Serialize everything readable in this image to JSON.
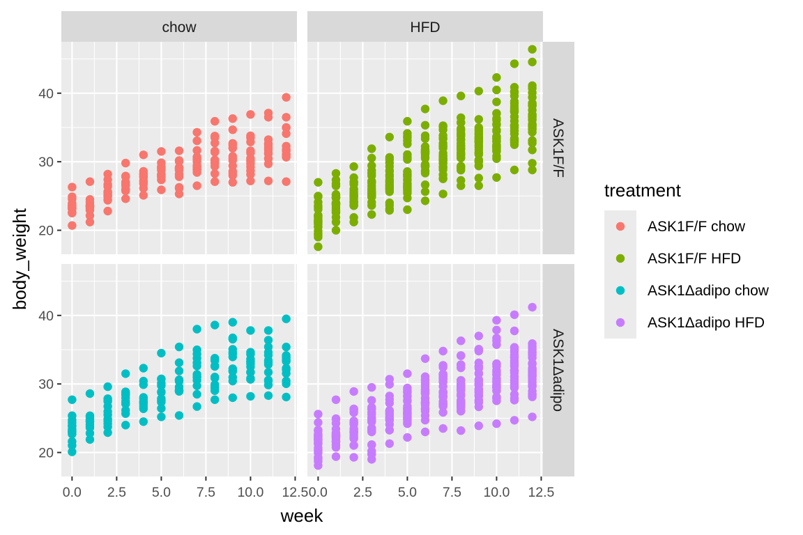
{
  "chart_data": {
    "type": "scatter",
    "xlabel": "week",
    "ylabel": "body_weight",
    "xlim": [
      -0.6,
      12.6
    ],
    "ylim": [
      16.5,
      47.5
    ],
    "x_ticks": [
      "0.0",
      "2.5",
      "5.0",
      "7.5",
      "10.0",
      "12.5"
    ],
    "x_tick_values": [
      0,
      2.5,
      5,
      7.5,
      10,
      12.5
    ],
    "y_ticks": [
      "20",
      "30",
      "40"
    ],
    "y_tick_values": [
      20,
      30,
      40
    ],
    "facet_columns": [
      "chow",
      "HFD"
    ],
    "facet_rows": [
      "ASK1F/F",
      "ASK1Δadipo"
    ],
    "legend": {
      "title": "treatment",
      "position": "right",
      "entries": [
        {
          "label": "ASK1F/F chow",
          "color": "#F8766D"
        },
        {
          "label": "ASK1F/F HFD",
          "color": "#7CAE00"
        },
        {
          "label": "ASK1Δadipo chow",
          "color": "#00BFC4"
        },
        {
          "label": "ASK1Δadipo HFD",
          "color": "#C77CFF"
        }
      ]
    },
    "series": [
      {
        "name": "ASK1F/F chow",
        "row": 0,
        "col": 0,
        "color": "#F8766D",
        "x": [
          0,
          1,
          2,
          3,
          4,
          5,
          6,
          7,
          8,
          9,
          10,
          11,
          12
        ],
        "min": [
          20.7,
          21.2,
          22.8,
          24.6,
          25.1,
          25.9,
          25.3,
          26.5,
          27.1,
          27.0,
          27.2,
          27.2,
          27.1
        ],
        "max": [
          26.3,
          27.1,
          28.2,
          29.8,
          31.0,
          31.5,
          31.6,
          34.3,
          35.9,
          36.3,
          36.9,
          37.1,
          39.4
        ],
        "n": [
          18,
          14,
          15,
          14,
          13,
          14,
          14,
          15,
          15,
          14,
          14,
          14,
          14
        ]
      },
      {
        "name": "ASK1F/F HFD",
        "row": 0,
        "col": 1,
        "color": "#7CAE00",
        "x": [
          0,
          1,
          2,
          3,
          4,
          5,
          6,
          7,
          8,
          9,
          10,
          11,
          12
        ],
        "min": [
          17.6,
          20.0,
          21.2,
          22.3,
          22.9,
          23.0,
          24.3,
          25.3,
          26.5,
          26.5,
          27.7,
          28.8,
          28.8
        ],
        "max": [
          27.0,
          28.3,
          29.3,
          31.9,
          33.6,
          35.9,
          37.7,
          38.9,
          39.6,
          40.3,
          42.3,
          44.3,
          46.4
        ],
        "n": [
          26,
          24,
          24,
          26,
          26,
          28,
          30,
          30,
          30,
          30,
          30,
          30,
          30
        ]
      },
      {
        "name": "ASK1Δadipo chow",
        "row": 1,
        "col": 0,
        "color": "#00BFC4",
        "x": [
          0,
          1,
          2,
          3,
          4,
          5,
          6,
          7,
          8,
          9,
          10,
          11,
          12
        ],
        "min": [
          20.1,
          21.9,
          22.9,
          24.0,
          24.5,
          25.2,
          25.4,
          26.7,
          27.7,
          28.0,
          28.2,
          28.3,
          28.1
        ],
        "max": [
          27.7,
          28.6,
          29.6,
          31.5,
          32.3,
          34.5,
          35.4,
          38.0,
          38.6,
          39.0,
          37.8,
          37.8,
          39.5
        ],
        "n": [
          14,
          12,
          12,
          12,
          12,
          12,
          12,
          13,
          13,
          13,
          13,
          13,
          13
        ]
      },
      {
        "name": "ASK1Δadipo HFD",
        "row": 1,
        "col": 1,
        "color": "#C77CFF",
        "x": [
          0,
          1,
          2,
          3,
          4,
          5,
          6,
          7,
          8,
          9,
          10,
          11,
          12
        ],
        "min": [
          18.1,
          19.4,
          19.3,
          19.0,
          21.3,
          22.2,
          23.0,
          23.5,
          23.2,
          23.9,
          24.2,
          24.7,
          25.2
        ],
        "max": [
          25.6,
          27.7,
          28.9,
          29.5,
          30.7,
          31.5,
          33.7,
          34.8,
          36.3,
          37.0,
          39.3,
          40.1,
          41.2
        ],
        "n": [
          26,
          22,
          22,
          24,
          26,
          28,
          30,
          30,
          30,
          30,
          30,
          30,
          30
        ]
      }
    ]
  }
}
